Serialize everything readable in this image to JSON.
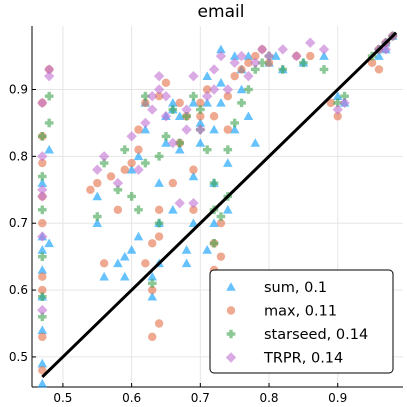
{
  "chart_data": {
    "type": "scatter",
    "title": "email",
    "xlabel": "",
    "ylabel": "",
    "xlim": [
      0.455,
      0.995
    ],
    "ylim": [
      0.455,
      0.995
    ],
    "xticks": [
      0.5,
      0.6,
      0.7,
      0.8,
      0.9
    ],
    "yticks": [
      0.5,
      0.6,
      0.7,
      0.8,
      0.9
    ],
    "xtick_labels": [
      "0.5",
      "0.6",
      "0.7",
      "0.8",
      "0.9"
    ],
    "ytick_labels": [
      "0.5",
      "0.6",
      "0.7",
      "0.8",
      "0.9"
    ],
    "grid": true,
    "legend_position": "bottom-right",
    "diagonal_line": {
      "from": [
        0.47,
        0.47
      ],
      "to": [
        0.985,
        0.985
      ],
      "color": "#000000"
    },
    "series": [
      {
        "name": "sum, 0.1",
        "marker": "triangle",
        "color": "#009AFA",
        "points": [
          [
            0.47,
            0.46
          ],
          [
            0.47,
            0.49
          ],
          [
            0.47,
            0.54
          ],
          [
            0.47,
            0.59
          ],
          [
            0.47,
            0.63
          ],
          [
            0.47,
            0.66
          ],
          [
            0.47,
            0.68
          ],
          [
            0.48,
            0.67
          ],
          [
            0.48,
            0.81
          ],
          [
            0.47,
            0.76
          ],
          [
            0.55,
            0.7
          ],
          [
            0.55,
            0.74
          ],
          [
            0.56,
            0.62
          ],
          [
            0.58,
            0.64
          ],
          [
            0.59,
            0.62
          ],
          [
            0.59,
            0.65
          ],
          [
            0.6,
            0.66
          ],
          [
            0.61,
            0.68
          ],
          [
            0.6,
            0.78
          ],
          [
            0.61,
            0.8
          ],
          [
            0.62,
            0.84
          ],
          [
            0.62,
            0.88
          ],
          [
            0.63,
            0.59
          ],
          [
            0.63,
            0.62
          ],
          [
            0.64,
            0.64
          ],
          [
            0.64,
            0.7
          ],
          [
            0.64,
            0.76
          ],
          [
            0.65,
            0.82
          ],
          [
            0.65,
            0.86
          ],
          [
            0.66,
            0.88
          ],
          [
            0.66,
            0.72
          ],
          [
            0.67,
            0.81
          ],
          [
            0.67,
            0.86
          ],
          [
            0.68,
            0.64
          ],
          [
            0.68,
            0.66
          ],
          [
            0.69,
            0.7
          ],
          [
            0.69,
            0.77
          ],
          [
            0.7,
            0.82
          ],
          [
            0.7,
            0.85
          ],
          [
            0.71,
            0.88
          ],
          [
            0.71,
            0.66
          ],
          [
            0.72,
            0.7
          ],
          [
            0.72,
            0.76
          ],
          [
            0.72,
            0.84
          ],
          [
            0.73,
            0.88
          ],
          [
            0.73,
            0.91
          ],
          [
            0.74,
            0.72
          ],
          [
            0.74,
            0.79
          ],
          [
            0.75,
            0.84
          ],
          [
            0.76,
            0.9
          ],
          [
            0.76,
            0.93
          ],
          [
            0.77,
            0.95
          ],
          [
            0.78,
            0.82
          ],
          [
            0.8,
            0.94
          ],
          [
            0.81,
            0.95
          ],
          [
            0.82,
            0.93
          ],
          [
            0.85,
            0.94
          ],
          [
            0.88,
            0.95
          ],
          [
            0.9,
            0.89
          ],
          [
            0.91,
            0.88
          ],
          [
            0.96,
            0.95
          ],
          [
            0.97,
            0.97
          ],
          [
            0.98,
            0.98
          ],
          [
            0.97,
            0.96
          ],
          [
            0.73,
            0.96
          ],
          [
            0.75,
            0.95
          ],
          [
            0.71,
            0.92
          ],
          [
            0.69,
            0.88
          ],
          [
            0.66,
            0.87
          ],
          [
            0.77,
            0.86
          ]
        ]
      },
      {
        "name": "max, 0.11",
        "marker": "circle",
        "color": "#E26F46",
        "points": [
          [
            0.47,
            0.48
          ],
          [
            0.47,
            0.53
          ],
          [
            0.47,
            0.6
          ],
          [
            0.47,
            0.62
          ],
          [
            0.47,
            0.7
          ],
          [
            0.47,
            0.74
          ],
          [
            0.47,
            0.79
          ],
          [
            0.47,
            0.83
          ],
          [
            0.48,
            0.93
          ],
          [
            0.47,
            0.88
          ],
          [
            0.54,
            0.75
          ],
          [
            0.55,
            0.76
          ],
          [
            0.56,
            0.64
          ],
          [
            0.57,
            0.77
          ],
          [
            0.58,
            0.72
          ],
          [
            0.59,
            0.78
          ],
          [
            0.6,
            0.79
          ],
          [
            0.61,
            0.81
          ],
          [
            0.62,
            0.64
          ],
          [
            0.62,
            0.88
          ],
          [
            0.63,
            0.53
          ],
          [
            0.64,
            0.55
          ],
          [
            0.64,
            0.68
          ],
          [
            0.63,
            0.6
          ],
          [
            0.63,
            0.67
          ],
          [
            0.64,
            0.72
          ],
          [
            0.64,
            0.89
          ],
          [
            0.65,
            0.91
          ],
          [
            0.66,
            0.76
          ],
          [
            0.67,
            0.82
          ],
          [
            0.68,
            0.86
          ],
          [
            0.69,
            0.72
          ],
          [
            0.69,
            0.78
          ],
          [
            0.7,
            0.86
          ],
          [
            0.71,
            0.9
          ],
          [
            0.72,
            0.67
          ],
          [
            0.72,
            0.63
          ],
          [
            0.73,
            0.65
          ],
          [
            0.73,
            0.7
          ],
          [
            0.74,
            0.84
          ],
          [
            0.74,
            0.89
          ],
          [
            0.75,
            0.92
          ],
          [
            0.76,
            0.93
          ],
          [
            0.77,
            0.94
          ],
          [
            0.78,
            0.95
          ],
          [
            0.79,
            0.96
          ],
          [
            0.8,
            0.94
          ],
          [
            0.84,
            0.95
          ],
          [
            0.86,
            0.95
          ],
          [
            0.89,
            0.88
          ],
          [
            0.9,
            0.86
          ],
          [
            0.95,
            0.94
          ],
          [
            0.96,
            0.93
          ],
          [
            0.97,
            0.97
          ],
          [
            0.98,
            0.98
          ],
          [
            0.96,
            0.96
          ],
          [
            0.7,
            0.88
          ],
          [
            0.72,
            0.86
          ],
          [
            0.67,
            0.88
          ],
          [
            0.61,
            0.84
          ]
        ]
      },
      {
        "name": "starseed, 0.14",
        "marker": "cross",
        "color": "#3EA44E",
        "points": [
          [
            0.47,
            0.56
          ],
          [
            0.47,
            0.59
          ],
          [
            0.47,
            0.72
          ],
          [
            0.47,
            0.77
          ],
          [
            0.47,
            0.83
          ],
          [
            0.48,
            0.85
          ],
          [
            0.48,
            0.89
          ],
          [
            0.47,
            0.65
          ],
          [
            0.55,
            0.71
          ],
          [
            0.56,
            0.79
          ],
          [
            0.58,
            0.75
          ],
          [
            0.59,
            0.81
          ],
          [
            0.61,
            0.72
          ],
          [
            0.62,
            0.79
          ],
          [
            0.62,
            0.89
          ],
          [
            0.63,
            0.61
          ],
          [
            0.64,
            0.7
          ],
          [
            0.64,
            0.8
          ],
          [
            0.65,
            0.83
          ],
          [
            0.66,
            0.87
          ],
          [
            0.67,
            0.82
          ],
          [
            0.68,
            0.86
          ],
          [
            0.69,
            0.89
          ],
          [
            0.7,
            0.87
          ],
          [
            0.7,
            0.84
          ],
          [
            0.71,
            0.81
          ],
          [
            0.72,
            0.76
          ],
          [
            0.72,
            0.67
          ],
          [
            0.73,
            0.71
          ],
          [
            0.74,
            0.74
          ],
          [
            0.74,
            0.81
          ],
          [
            0.75,
            0.85
          ],
          [
            0.76,
            0.88
          ],
          [
            0.77,
            0.9
          ],
          [
            0.78,
            0.93
          ],
          [
            0.79,
            0.94
          ],
          [
            0.8,
            0.95
          ],
          [
            0.82,
            0.93
          ],
          [
            0.85,
            0.94
          ],
          [
            0.88,
            0.93
          ],
          [
            0.9,
            0.88
          ],
          [
            0.91,
            0.89
          ],
          [
            0.95,
            0.95
          ],
          [
            0.96,
            0.96
          ],
          [
            0.97,
            0.97
          ],
          [
            0.98,
            0.98
          ],
          [
            0.72,
            0.72
          ],
          [
            0.6,
            0.74
          ]
        ]
      },
      {
        "name": "TRPR, 0.14",
        "marker": "diamond",
        "color": "#C271D2",
        "points": [
          [
            0.47,
            0.57
          ],
          [
            0.47,
            0.68
          ],
          [
            0.47,
            0.74
          ],
          [
            0.47,
            0.75
          ],
          [
            0.47,
            0.88
          ],
          [
            0.48,
            0.92
          ],
          [
            0.48,
            0.93
          ],
          [
            0.47,
            0.8
          ],
          [
            0.55,
            0.78
          ],
          [
            0.56,
            0.8
          ],
          [
            0.58,
            0.76
          ],
          [
            0.6,
            0.83
          ],
          [
            0.61,
            0.78
          ],
          [
            0.62,
            0.85
          ],
          [
            0.63,
            0.87
          ],
          [
            0.63,
            0.89
          ],
          [
            0.64,
            0.9
          ],
          [
            0.64,
            0.92
          ],
          [
            0.65,
            0.86
          ],
          [
            0.66,
            0.82
          ],
          [
            0.67,
            0.73
          ],
          [
            0.68,
            0.84
          ],
          [
            0.68,
            0.87
          ],
          [
            0.69,
            0.92
          ],
          [
            0.7,
            0.84
          ],
          [
            0.71,
            0.89
          ],
          [
            0.72,
            0.93
          ],
          [
            0.73,
            0.95
          ],
          [
            0.74,
            0.9
          ],
          [
            0.75,
            0.94
          ],
          [
            0.76,
            0.95
          ],
          [
            0.77,
            0.92
          ],
          [
            0.78,
            0.94
          ],
          [
            0.79,
            0.96
          ],
          [
            0.8,
            0.95
          ],
          [
            0.82,
            0.96
          ],
          [
            0.84,
            0.95
          ],
          [
            0.86,
            0.97
          ],
          [
            0.88,
            0.96
          ],
          [
            0.9,
            0.87
          ],
          [
            0.91,
            0.88
          ],
          [
            0.96,
            0.96
          ],
          [
            0.97,
            0.97
          ],
          [
            0.98,
            0.98
          ],
          [
            0.97,
            0.96
          ],
          [
            0.72,
            0.9
          ],
          [
            0.69,
            0.73
          ],
          [
            0.65,
            0.89
          ]
        ]
      }
    ]
  }
}
